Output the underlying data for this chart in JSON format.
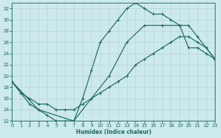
{
  "xlabel": "Humidex (Indice chaleur)",
  "xlim": [
    0,
    23
  ],
  "ylim": [
    12,
    33
  ],
  "xticks": [
    0,
    1,
    2,
    3,
    4,
    5,
    6,
    7,
    8,
    9,
    10,
    11,
    12,
    13,
    14,
    15,
    16,
    17,
    18,
    19,
    20,
    21,
    22,
    23
  ],
  "yticks": [
    12,
    14,
    16,
    18,
    20,
    22,
    24,
    26,
    28,
    30,
    32
  ],
  "bg_color": "#cce9ec",
  "line_color": "#1a6b5a",
  "grid_color": "#b8d8db",
  "curve1_x": [
    0,
    1,
    2,
    3,
    4,
    5,
    6,
    7,
    8,
    9,
    10,
    11,
    12,
    13,
    14,
    15,
    16,
    17,
    18,
    19,
    20,
    21,
    22,
    23
  ],
  "curve1_y": [
    19,
    17,
    15,
    14,
    13,
    12,
    12,
    12,
    16,
    21,
    26,
    28,
    30,
    32,
    33,
    32,
    31,
    31,
    30,
    29,
    25,
    25,
    24,
    23
  ],
  "curve2_x": [
    0,
    1,
    2,
    3,
    4,
    5,
    6,
    7,
    8,
    9,
    10,
    11,
    12,
    13,
    14,
    15,
    16,
    17,
    18,
    19,
    20,
    21,
    22,
    23
  ],
  "curve2_y": [
    19,
    17,
    16,
    15,
    15,
    14,
    14,
    14,
    15,
    16,
    17,
    18,
    19,
    20,
    22,
    23,
    24,
    25,
    26,
    27,
    27,
    26,
    25,
    23
  ],
  "curve3_x": [
    0,
    3,
    7,
    9,
    11,
    13,
    15,
    17,
    19,
    20,
    21,
    22,
    23
  ],
  "curve3_y": [
    19,
    14,
    12,
    16,
    20,
    26,
    29,
    29,
    29,
    29,
    27,
    25,
    23
  ]
}
